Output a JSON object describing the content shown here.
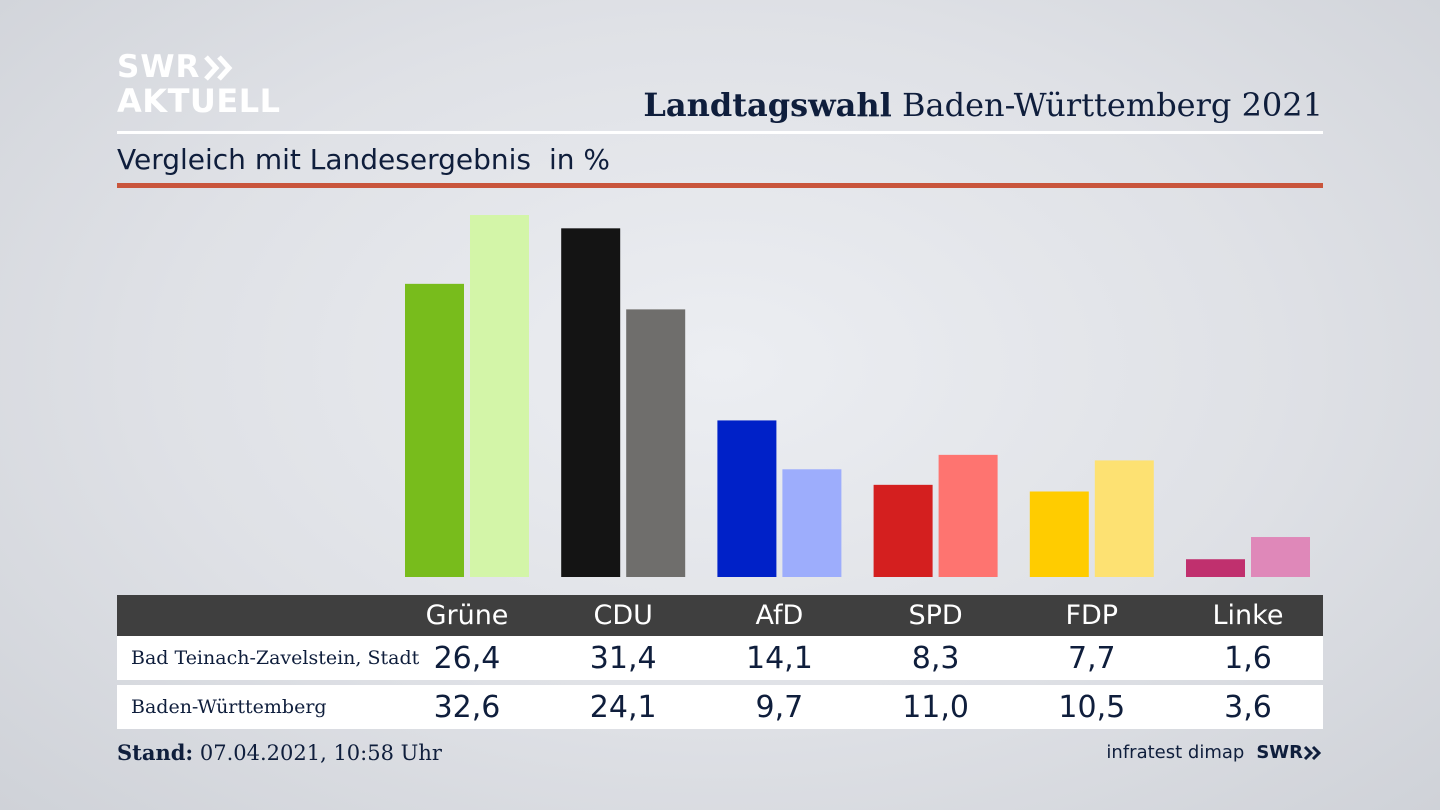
{
  "logo": {
    "line1": "SWR",
    "line2": "AKTUELL"
  },
  "header": {
    "title_bold": "Landtagswahl",
    "title_rest": " Baden-Württemberg 2021"
  },
  "subheader": {
    "text": "Vergleich mit Landesergebnis",
    "unit": "in %"
  },
  "footer": {
    "stand_label": "Stand:",
    "stand_value": " 07.04.2021, 10:58 Uhr",
    "source": "infratest dimap",
    "brand": "SWR"
  },
  "chart_data": {
    "type": "bar",
    "categories": [
      "Grüne",
      "CDU",
      "AfD",
      "SPD",
      "FDP",
      "Linke"
    ],
    "series": [
      {
        "name": "Bad Teinach-Zavelstein, Stadt",
        "values": [
          26.4,
          31.4,
          14.1,
          8.3,
          7.7,
          1.6
        ],
        "display": [
          "26,4",
          "31,4",
          "14,1",
          "8,3",
          "7,7",
          "1,6"
        ]
      },
      {
        "name": "Baden-Württemberg",
        "values": [
          32.6,
          24.1,
          9.7,
          11.0,
          10.5,
          3.6
        ],
        "display": [
          "32,6",
          "24,1",
          "9,7",
          "11,0",
          "10,5",
          "3,6"
        ]
      }
    ],
    "colors": [
      [
        "#78bc1c",
        "#d3f5a8"
      ],
      [
        "#141414",
        "#6f6e6c"
      ],
      [
        "#0021c8",
        "#9dadfc"
      ],
      [
        "#d41f1f",
        "#fe7470"
      ],
      [
        "#ffcc00",
        "#fde172"
      ],
      [
        "#c0306e",
        "#df88b9"
      ]
    ],
    "ylim": [
      0,
      32.6
    ]
  }
}
